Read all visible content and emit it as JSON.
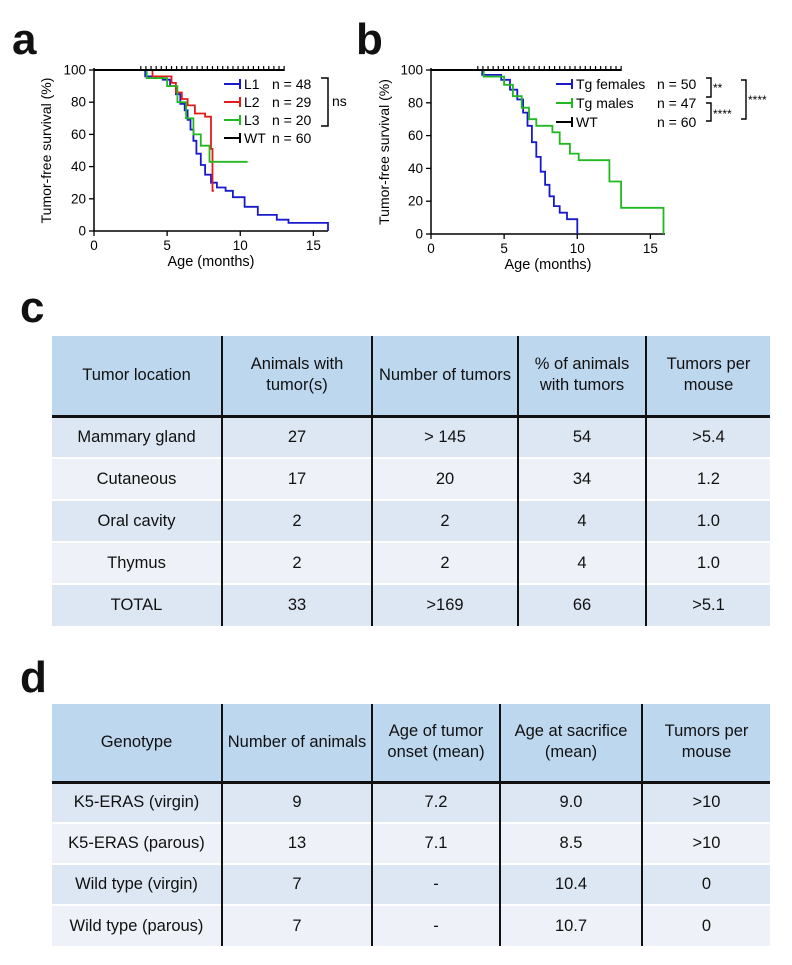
{
  "panels": {
    "a": "a",
    "b": "b",
    "c": "c",
    "d": "d"
  },
  "chart_data": [
    {
      "id": "a",
      "type": "line",
      "title": "",
      "xlabel": "Age (months)",
      "ylabel": "Tumor-free survival (%)",
      "xlim": [
        0,
        16
      ],
      "ylim": [
        0,
        100
      ],
      "xticks": [
        0,
        5,
        10,
        15
      ],
      "yticks": [
        0,
        20,
        40,
        60,
        80,
        100
      ],
      "series": [
        {
          "name": "L1",
          "n_label": "n = 48",
          "color": "#1a1acd",
          "points": [
            [
              0,
              100
            ],
            [
              3.5,
              100
            ],
            [
              3.5,
              96
            ],
            [
              4.7,
              96
            ],
            [
              4.7,
              94
            ],
            [
              5.2,
              94
            ],
            [
              5.2,
              90
            ],
            [
              5.6,
              90
            ],
            [
              5.6,
              85
            ],
            [
              5.9,
              85
            ],
            [
              5.9,
              79
            ],
            [
              6.2,
              79
            ],
            [
              6.2,
              75
            ],
            [
              6.4,
              75
            ],
            [
              6.4,
              69
            ],
            [
              6.6,
              69
            ],
            [
              6.6,
              63
            ],
            [
              6.8,
              63
            ],
            [
              6.8,
              56
            ],
            [
              7.0,
              56
            ],
            [
              7.0,
              48
            ],
            [
              7.3,
              48
            ],
            [
              7.3,
              41
            ],
            [
              7.6,
              41
            ],
            [
              7.6,
              35
            ],
            [
              8.0,
              35
            ],
            [
              8.0,
              30
            ],
            [
              8.4,
              30
            ],
            [
              8.4,
              27
            ],
            [
              9.0,
              27
            ],
            [
              9.0,
              25
            ],
            [
              9.5,
              25
            ],
            [
              9.5,
              21
            ],
            [
              10.3,
              21
            ],
            [
              10.3,
              15
            ],
            [
              11.2,
              15
            ],
            [
              11.2,
              10
            ],
            [
              12.5,
              10
            ],
            [
              12.5,
              7
            ],
            [
              13.3,
              7
            ],
            [
              13.3,
              5
            ],
            [
              16.0,
              5
            ],
            [
              16.0,
              0
            ]
          ]
        },
        {
          "name": "L2",
          "n_label": "n = 29",
          "color": "#e31b1b",
          "points": [
            [
              0,
              100
            ],
            [
              4.0,
              100
            ],
            [
              4.0,
              96
            ],
            [
              5.3,
              96
            ],
            [
              5.3,
              92
            ],
            [
              5.6,
              92
            ],
            [
              5.6,
              86
            ],
            [
              6.0,
              86
            ],
            [
              6.0,
              82
            ],
            [
              6.4,
              82
            ],
            [
              6.4,
              78
            ],
            [
              6.9,
              78
            ],
            [
              6.9,
              73
            ],
            [
              7.6,
              73
            ],
            [
              7.6,
              71
            ],
            [
              8.0,
              71
            ],
            [
              8.0,
              51
            ],
            [
              8.1,
              51
            ],
            [
              8.1,
              25
            ],
            [
              8.2,
              25
            ]
          ]
        },
        {
          "name": "L3",
          "n_label": "n = 20",
          "color": "#22b822",
          "points": [
            [
              0,
              100
            ],
            [
              3.6,
              100
            ],
            [
              3.6,
              95
            ],
            [
              5.0,
              95
            ],
            [
              5.0,
              90
            ],
            [
              5.7,
              90
            ],
            [
              5.7,
              80
            ],
            [
              6.3,
              80
            ],
            [
              6.3,
              70
            ],
            [
              6.8,
              70
            ],
            [
              6.8,
              60
            ],
            [
              7.3,
              60
            ],
            [
              7.3,
              53
            ],
            [
              7.9,
              53
            ],
            [
              7.9,
              43
            ],
            [
              10.5,
              43
            ]
          ]
        },
        {
          "name": "WT",
          "n_label": "n = 60",
          "color": "#000000",
          "points": [
            [
              0,
              100
            ],
            [
              13.0,
              100
            ]
          ]
        }
      ],
      "annotations": [
        "ns"
      ]
    },
    {
      "id": "b",
      "type": "line",
      "title": "",
      "xlabel": "Age (months)",
      "ylabel": "Tumor-free survival (%)",
      "xlim": [
        0,
        16
      ],
      "ylim": [
        0,
        100
      ],
      "xticks": [
        0,
        5,
        10,
        15
      ],
      "yticks": [
        0,
        20,
        40,
        60,
        80,
        100
      ],
      "series": [
        {
          "name": "Tg females",
          "n_label": "n = 50",
          "color": "#1a1acd",
          "points": [
            [
              0,
              100
            ],
            [
              3.5,
              100
            ],
            [
              3.5,
              97
            ],
            [
              4.8,
              97
            ],
            [
              4.8,
              94
            ],
            [
              5.4,
              94
            ],
            [
              5.4,
              88
            ],
            [
              5.9,
              88
            ],
            [
              5.9,
              82
            ],
            [
              6.3,
              82
            ],
            [
              6.3,
              74
            ],
            [
              6.6,
              74
            ],
            [
              6.6,
              66
            ],
            [
              6.9,
              66
            ],
            [
              6.9,
              56
            ],
            [
              7.2,
              56
            ],
            [
              7.2,
              47
            ],
            [
              7.5,
              47
            ],
            [
              7.5,
              38
            ],
            [
              7.8,
              38
            ],
            [
              7.8,
              30
            ],
            [
              8.1,
              30
            ],
            [
              8.1,
              23
            ],
            [
              8.4,
              23
            ],
            [
              8.4,
              17
            ],
            [
              8.8,
              17
            ],
            [
              8.8,
              13
            ],
            [
              9.3,
              13
            ],
            [
              9.3,
              9
            ],
            [
              10.0,
              9
            ],
            [
              10.0,
              0
            ]
          ]
        },
        {
          "name": "Tg males",
          "n_label": "n = 47",
          "color": "#22b822",
          "points": [
            [
              0,
              100
            ],
            [
              3.6,
              100
            ],
            [
              3.6,
              96
            ],
            [
              5.0,
              96
            ],
            [
              5.0,
              91
            ],
            [
              5.6,
              91
            ],
            [
              5.6,
              84
            ],
            [
              6.2,
              84
            ],
            [
              6.2,
              77
            ],
            [
              6.7,
              77
            ],
            [
              6.7,
              70
            ],
            [
              7.2,
              70
            ],
            [
              7.2,
              66
            ],
            [
              8.3,
              66
            ],
            [
              8.3,
              62
            ],
            [
              8.8,
              62
            ],
            [
              8.8,
              55
            ],
            [
              9.5,
              55
            ],
            [
              9.5,
              49
            ],
            [
              10.1,
              49
            ],
            [
              10.1,
              45
            ],
            [
              12.2,
              45
            ],
            [
              12.2,
              32
            ],
            [
              13.0,
              32
            ],
            [
              13.0,
              16
            ],
            [
              15.9,
              16
            ],
            [
              15.9,
              0
            ]
          ]
        },
        {
          "name": "WT",
          "n_label": "n = 60",
          "color": "#000000",
          "points": [
            [
              0,
              100
            ],
            [
              13.0,
              100
            ]
          ]
        }
      ],
      "annotations": [
        "**",
        "****",
        "****"
      ]
    }
  ],
  "table_c": {
    "headers": [
      "Tumor location",
      "Animals with tumor(s)",
      "Number of tumors",
      "% of animals with tumors",
      "Tumors per mouse"
    ],
    "rows": [
      [
        "Mammary gland",
        "27",
        "> 145",
        "54",
        ">5.4"
      ],
      [
        "Cutaneous",
        "17",
        "20",
        "34",
        "1.2"
      ],
      [
        "Oral cavity",
        "2",
        "2",
        "4",
        "1.0"
      ],
      [
        "Thymus",
        "2",
        "2",
        "4",
        "1.0"
      ],
      [
        "TOTAL",
        "33",
        ">169",
        "66",
        ">5.1"
      ]
    ]
  },
  "table_d": {
    "headers": [
      "Genotype",
      "Number of animals",
      "Age of tumor onset (mean)",
      "Age at sacrifice (mean)",
      "Tumors per mouse"
    ],
    "rows": [
      [
        "K5-ERAS (virgin)",
        "9",
        "7.2",
        "9.0",
        ">10"
      ],
      [
        "K5-ERAS (parous)",
        "13",
        "7.1",
        "8.5",
        ">10"
      ],
      [
        "Wild type (virgin)",
        "7",
        "-",
        "10.4",
        "0"
      ],
      [
        "Wild type (parous)",
        "7",
        "-",
        "10.7",
        "0"
      ]
    ]
  }
}
